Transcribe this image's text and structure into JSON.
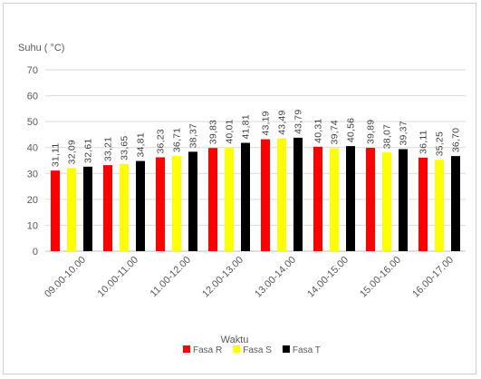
{
  "chart_data": {
    "type": "bar",
    "title": "",
    "ylabel": "Suhu ( °C)",
    "xlabel": "Waktu",
    "ylim": [
      0,
      70
    ],
    "yticks": [
      0,
      10,
      20,
      30,
      40,
      50,
      60,
      70
    ],
    "grid": true,
    "legend_position": "bottom",
    "categories": [
      "09.00-10.00",
      "10.00-11.00",
      "11.00-12.00",
      "12.00-13.00",
      "13.00-14.00",
      "14.00-15.00",
      "15.00-16.00",
      "16.00-17.00"
    ],
    "series": [
      {
        "name": "Fasa R",
        "color": "#ff0000",
        "values": [
          31.11,
          33.21,
          36.23,
          39.83,
          43.19,
          40.31,
          39.89,
          36.11
        ],
        "labels": [
          "31,11",
          "33,21",
          "36,23",
          "39,83",
          "43,19",
          "40,31",
          "39,89",
          "36,11"
        ]
      },
      {
        "name": "Fasa S",
        "color": "#ffff00",
        "values": [
          32.09,
          33.65,
          36.71,
          40.01,
          43.49,
          39.74,
          38.07,
          35.25
        ],
        "labels": [
          "32,09",
          "33,65",
          "36,71",
          "40,01",
          "43,49",
          "39,74",
          "38,07",
          "35,25"
        ]
      },
      {
        "name": "Fasa T",
        "color": "#000000",
        "values": [
          32.61,
          34.81,
          38.37,
          41.81,
          43.79,
          40.56,
          39.37,
          36.7
        ],
        "labels": [
          "32,61",
          "34,81",
          "38,37",
          "41,81",
          "43,79",
          "40,56",
          "39,37",
          "36,70"
        ]
      }
    ]
  }
}
